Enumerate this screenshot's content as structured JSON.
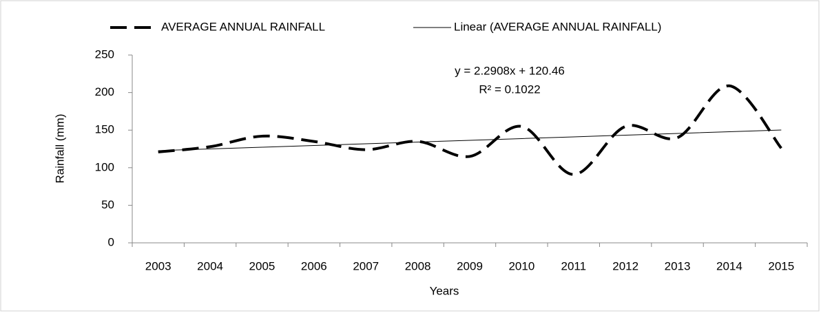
{
  "chart_data": {
    "type": "line",
    "categories": [
      "2003",
      "2004",
      "2005",
      "2006",
      "2007",
      "2008",
      "2009",
      "2010",
      "2011",
      "2012",
      "2013",
      "2014",
      "2015"
    ],
    "series": [
      {
        "name": "AVERAGE ANNUAL RAINFALL",
        "color": "#000000",
        "dashed": true,
        "smooth": true,
        "values": [
          121,
          128,
          142,
          135,
          124,
          135,
          115,
          155,
          91,
          155,
          140,
          209,
          126
        ]
      },
      {
        "name": "Linear (AVERAGE ANNUAL RAINFALL)",
        "color": "#000000",
        "dashed": false,
        "smooth": false,
        "values": [
          122.75,
          125.04,
          127.33,
          129.62,
          131.91,
          134.2,
          136.5,
          138.79,
          141.08,
          143.37,
          145.66,
          147.95,
          150.24
        ]
      }
    ],
    "annotations": [
      "y = 2.2908x + 120.46",
      "R² = 0.1022"
    ],
    "x_label": "Years",
    "y_label": "Rainfall (mm)",
    "ylim": [
      0,
      250
    ],
    "yticks": [
      0,
      50,
      100,
      150,
      200,
      250
    ],
    "grid": false,
    "legend": "top"
  }
}
